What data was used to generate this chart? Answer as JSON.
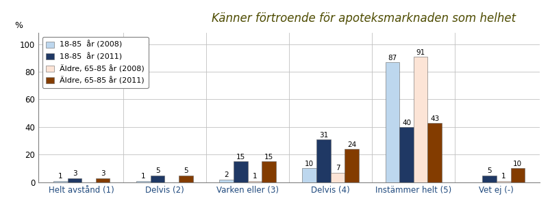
{
  "categories": [
    "Helt avstånd (1)",
    "Delvis (2)",
    "Varken eller (3)",
    "Delvis (4)",
    "Instämmer helt (5)",
    "Vet ej (-)"
  ],
  "series": [
    {
      "label": "18-85  år (2008)",
      "values": [
        1,
        1,
        2,
        10,
        87,
        0
      ],
      "color": "#bdd7ee"
    },
    {
      "label": "18-85  år (2011)",
      "values": [
        3,
        5,
        15,
        31,
        40,
        5
      ],
      "color": "#1f3864"
    },
    {
      "label": "Äldre, 65-85 år (2008)",
      "values": [
        0,
        0,
        1,
        7,
        91,
        1
      ],
      "color": "#fce4d6"
    },
    {
      "label": "Äldre, 65-85 år (2011)",
      "values": [
        3,
        5,
        15,
        24,
        43,
        10
      ],
      "color": "#833c00"
    }
  ],
  "ylabel": "%",
  "ylim": [
    0,
    108
  ],
  "yticks": [
    0,
    20,
    40,
    60,
    80,
    100
  ],
  "title": "Känner förtroende för apoteksmarknaden som helhet",
  "title_fontsize": 12,
  "title_color": "#4d4b00",
  "title_bg": "#c6d9a0",
  "title_edge": "#9bbb59",
  "bar_width": 0.17,
  "figsize": [
    8.04,
    3.03
  ],
  "dpi": 100,
  "background_color": "#ffffff",
  "legend_fontsize": 8.0,
  "tick_fontsize": 8.5,
  "value_fontsize": 7.5,
  "grid_color": "#c0c0c0",
  "xtick_color": "#1f497d"
}
